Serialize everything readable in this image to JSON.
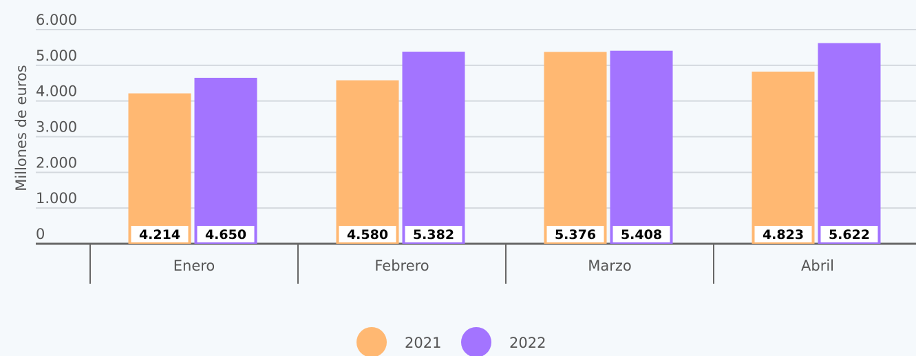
{
  "chart_data": {
    "type": "bar",
    "ylabel": "Millones de euros",
    "categories": [
      "Enero",
      "Febrero",
      "Marzo",
      "Abril"
    ],
    "series": [
      {
        "name": "2021",
        "color": "#ffb872",
        "values": [
          4214,
          4580,
          5376,
          4823
        ],
        "value_labels": [
          "4.214",
          "4.580",
          "5.376",
          "4.823"
        ]
      },
      {
        "name": "2022",
        "color": "#a374ff",
        "values": [
          4650,
          5382,
          5408,
          5622
        ],
        "value_labels": [
          "4.650",
          "5.382",
          "5.408",
          "5.622"
        ]
      }
    ],
    "ylim": [
      0,
      6000
    ],
    "yticks": [
      0,
      {
        "value": 1000,
        "label": "1.000"
      },
      {
        "value": 2000,
        "label": "2.000"
      },
      {
        "value": 3000,
        "label": "3.000"
      },
      {
        "value": 4000,
        "label": "4.000"
      },
      {
        "value": 5000,
        "label": "5.000"
      },
      {
        "value": 6000,
        "label": "6.000"
      }
    ],
    "grid": true,
    "legend": "bottom"
  }
}
